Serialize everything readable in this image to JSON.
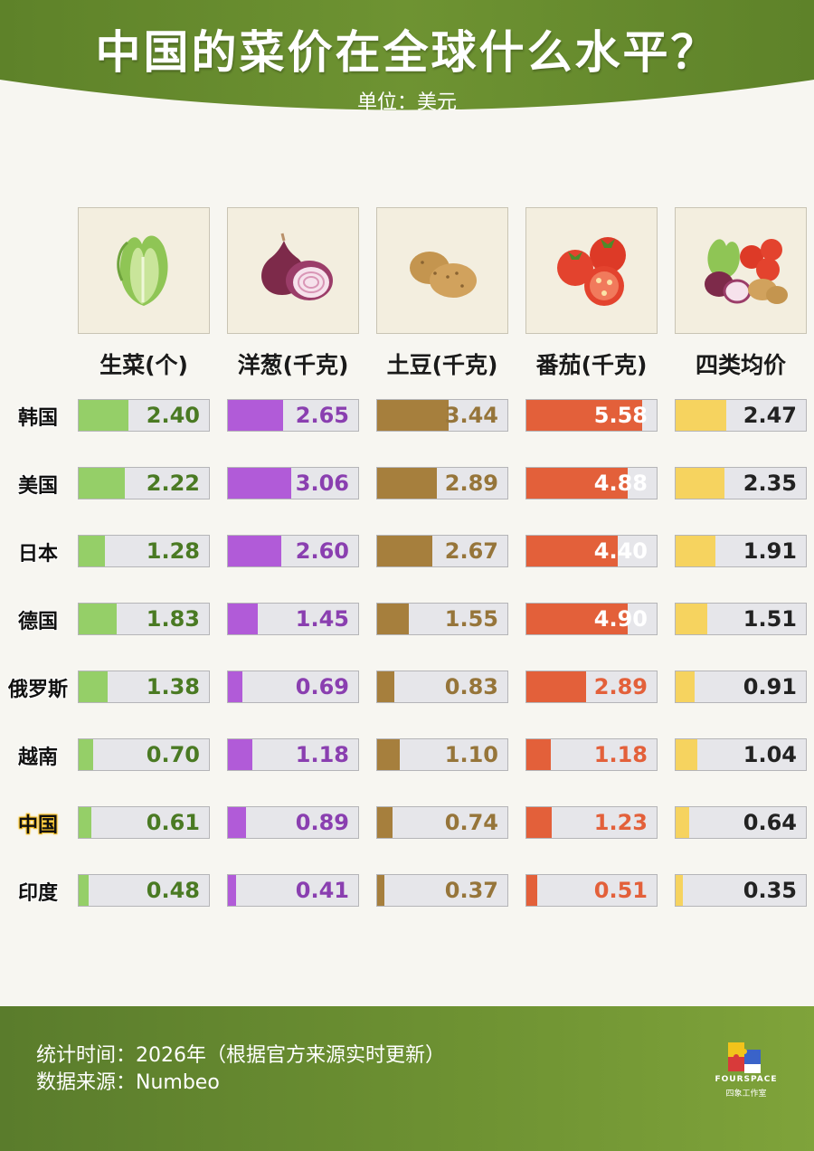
{
  "title": "中国的菜价在全球什么水平？",
  "unit": "单位：美元",
  "colors": {
    "header": "#6b8f30",
    "lettuce": "#95cf68",
    "onion": "#b15bd8",
    "potato": "#a67f3d",
    "tomato": "#e3603a",
    "average": "#f6d35f",
    "lettuce_text": "#4a7a23",
    "onion_text": "#8a3fb0",
    "potato_text": "#96753a",
    "tomato_text_on_bar": "#ffffff",
    "tomato_text": "#e3603a",
    "average_text": "#222222"
  },
  "icons": [
    "lettuce-icon",
    "onion-icon",
    "potato-icon",
    "tomato-icon",
    "mixed-vegetables-icon"
  ],
  "chart_data": {
    "type": "bar",
    "orientation": "horizontal",
    "categories": [
      "韩国",
      "美国",
      "日本",
      "德国",
      "俄罗斯",
      "越南",
      "中国",
      "印度"
    ],
    "highlight_category": "中国",
    "series": [
      {
        "name": "生菜(个)",
        "values": [
          2.4,
          2.22,
          1.28,
          1.83,
          1.38,
          0.7,
          0.61,
          0.48
        ]
      },
      {
        "name": "洋葱(千克)",
        "values": [
          2.65,
          3.06,
          2.6,
          1.45,
          0.69,
          1.18,
          0.89,
          0.41
        ]
      },
      {
        "name": "土豆(千克)",
        "values": [
          3.44,
          2.89,
          2.67,
          1.55,
          0.83,
          1.1,
          0.74,
          0.37
        ]
      },
      {
        "name": "番茄(千克)",
        "values": [
          5.58,
          4.88,
          4.4,
          4.9,
          2.89,
          1.18,
          1.23,
          0.51
        ]
      },
      {
        "name": "四类均价",
        "values": [
          2.47,
          2.35,
          1.91,
          1.51,
          0.91,
          1.04,
          0.64,
          0.35
        ]
      }
    ],
    "value_labels": [
      [
        "2.40",
        "2.22",
        "1.28",
        "1.83",
        "1.38",
        "0.70",
        "0.61",
        "0.48"
      ],
      [
        "2.65",
        "3.06",
        "2.60",
        "1.45",
        "0.69",
        "1.18",
        "0.89",
        "0.41"
      ],
      [
        "3.44",
        "2.89",
        "2.67",
        "1.55",
        "0.83",
        "1.10",
        "0.74",
        "0.37"
      ],
      [
        "5.58",
        "4.88",
        "4.40",
        "4.90",
        "2.89",
        "1.18",
        "1.23",
        "0.51"
      ],
      [
        "2.47",
        "2.35",
        "1.91",
        "1.51",
        "0.91",
        "1.04",
        "0.64",
        "0.35"
      ]
    ],
    "xlim": [
      0,
      6.3
    ],
    "grid": false,
    "legend": "none"
  },
  "footer": {
    "time": "统计时间：2026年（根据官方来源实时更新）",
    "source": "数据来源：Numbeo",
    "brand": "FOURSPACE",
    "brand_cn": "四象工作室"
  }
}
